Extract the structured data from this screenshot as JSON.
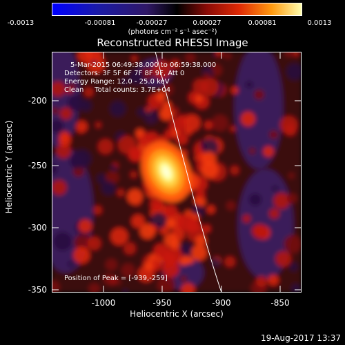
{
  "colorbar": {
    "ticks": [
      "-0.0013",
      "-0.00081",
      "-0.00027",
      "0.00027",
      "0.00081",
      "0.0013"
    ],
    "units": "(photons cm⁻² s⁻¹ asec⁻²)"
  },
  "title": "Reconstructed RHESSI Image",
  "annotation": {
    "time": "5-Mar-2015 06:49:38.000 to 06:59:38.000",
    "detectors": "Detectors: 3F 5F 6F 7F 8F 9F, Att 0",
    "energy": "Energy Range: 12.0 - 25.0 keV",
    "clean": "Clean     Total counts: 3.7E+04",
    "peak": "Position of Peak = [-939,-259]"
  },
  "axes": {
    "xlabel": "Heliocentric X (arcsec)",
    "ylabel": "Heliocentric Y (arcsec)",
    "xticks": [
      "-1000",
      "-950",
      "-900",
      "-850"
    ],
    "yticks": [
      "-200",
      "-250",
      "-300",
      "-350"
    ]
  },
  "timestamp": "19-Aug-2017 13:37",
  "colors": {
    "background": "#000000",
    "limb_line": "#ffffff"
  }
}
